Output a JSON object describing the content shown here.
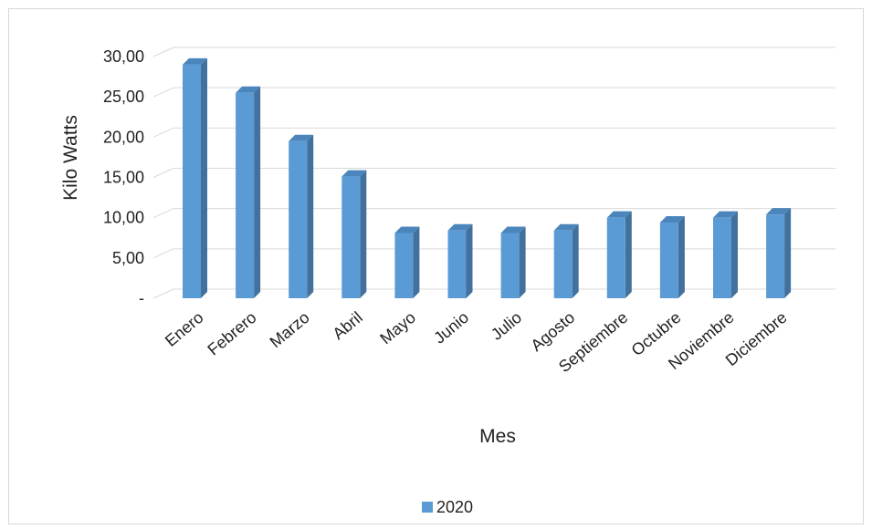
{
  "chart_data": {
    "type": "bar",
    "style": "3d-column",
    "categories": [
      "Enero",
      "Febrero",
      "Marzo",
      "Abril",
      "Mayo",
      "Junio",
      "Julio",
      "Agosto",
      "Septiembre",
      "Octubre",
      "Noviembre",
      "Diciembre"
    ],
    "series": [
      {
        "name": "2020",
        "color": "#5b9bd5",
        "values": [
          29.0,
          25.5,
          19.5,
          15.1,
          8.1,
          8.4,
          8.1,
          8.4,
          10.0,
          9.4,
          10.0,
          10.4
        ]
      }
    ],
    "title": "",
    "xlabel": "Mes",
    "ylabel": "Kilo Watts",
    "ylim": [
      0,
      30
    ],
    "yticks": [
      "-",
      "5,00",
      "10,00",
      "15,00",
      "20,00",
      "25,00",
      "30,00"
    ],
    "grid": true,
    "legend": "bottom",
    "colors": {
      "bar_front": "#5b9bd5",
      "bar_side": "#41719c",
      "bar_top": "#4a85bb",
      "grid": "#d9d9d9"
    }
  }
}
